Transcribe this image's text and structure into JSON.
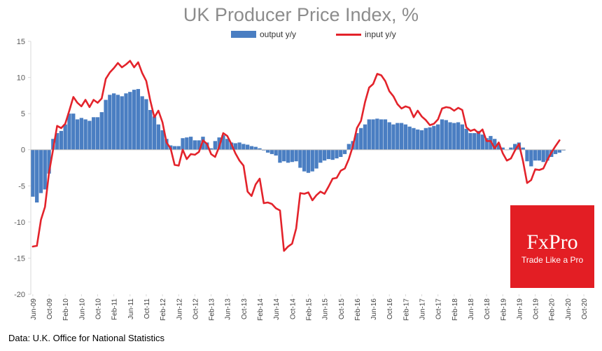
{
  "chart_data": {
    "type": "bar+line",
    "title": "UK Producer Price Index, %",
    "ylim": [
      -20,
      15
    ],
    "yticks": [
      15,
      10,
      5,
      0,
      -5,
      -10,
      -15,
      -20
    ],
    "xtick_labels": [
      "Jun-09",
      "Oct-09",
      "Feb-10",
      "Jun-10",
      "Oct-10",
      "Feb-11",
      "Jun-11",
      "Oct-11",
      "Feb-12",
      "Jun-12",
      "Oct-12",
      "Feb-13",
      "Jun-13",
      "Oct-13",
      "Feb-14",
      "Jun-14",
      "Oct-14",
      "Feb-15",
      "Jun-15",
      "Oct-15",
      "Feb-16",
      "Jun-16",
      "Oct-16",
      "Feb-17",
      "Jun-17",
      "Oct-17",
      "Feb-18",
      "Jun-18",
      "Oct-18",
      "Feb-19",
      "Jun-19",
      "Oct-19",
      "Feb-20",
      "Jun-20",
      "Oct-20"
    ],
    "x_start": "Jun-09",
    "series": [
      {
        "name": "output y/y",
        "kind": "bar",
        "color": "#4a7ec2",
        "values": [
          -6.5,
          -7.3,
          -6.0,
          -5.5,
          -3.3,
          1.5,
          2.3,
          2.6,
          3.5,
          5.0,
          5.0,
          4.2,
          4.4,
          4.2,
          4.0,
          4.5,
          4.5,
          5.2,
          6.9,
          7.6,
          7.8,
          7.6,
          7.4,
          7.8,
          8.0,
          8.3,
          8.4,
          7.4,
          7.0,
          5.5,
          4.6,
          3.5,
          2.7,
          1.5,
          0.6,
          0.5,
          0.5,
          1.6,
          1.7,
          1.8,
          1.3,
          1.3,
          1.8,
          1.0,
          0.2,
          1.2,
          1.7,
          2.0,
          1.5,
          1.0,
          0.9,
          1.0,
          0.8,
          0.7,
          0.5,
          0.4,
          0.2,
          -0.1,
          -0.4,
          -0.6,
          -0.8,
          -1.8,
          -1.6,
          -1.8,
          -1.7,
          -1.6,
          -2.5,
          -3.0,
          -3.2,
          -3.0,
          -2.6,
          -1.8,
          -1.5,
          -1.3,
          -1.4,
          -1.2,
          -1.0,
          -0.6,
          0.8,
          1.2,
          2.3,
          3.0,
          3.5,
          4.2,
          4.2,
          4.3,
          4.2,
          4.2,
          3.8,
          3.5,
          3.7,
          3.7,
          3.5,
          3.2,
          3.0,
          2.8,
          2.7,
          3.0,
          3.1,
          3.3,
          3.5,
          4.2,
          4.1,
          3.8,
          3.7,
          3.8,
          3.5,
          2.9,
          2.3,
          2.3,
          2.6,
          2.1,
          1.6,
          1.9,
          1.5,
          0.8,
          0.3,
          0.0,
          0.3,
          0.8,
          1.0,
          0.3,
          -1.6,
          -2.3,
          -1.5,
          -1.5,
          -1.7,
          -1.5,
          -1.0,
          -0.6,
          -0.4,
          -0.1
        ]
      },
      {
        "name": "input y/y",
        "kind": "line",
        "color": "#e3232b",
        "values": [
          -13.4,
          -13.3,
          -9.7,
          -7.9,
          -3.2,
          0.0,
          3.3,
          3.0,
          3.6,
          5.4,
          7.3,
          6.5,
          6.0,
          6.9,
          5.9,
          6.9,
          6.5,
          7.1,
          9.8,
          10.7,
          11.3,
          12.0,
          11.4,
          11.8,
          12.3,
          11.4,
          12.1,
          10.6,
          9.5,
          6.8,
          4.5,
          5.4,
          3.8,
          1.0,
          0.2,
          -2.1,
          -2.2,
          0.0,
          -1.3,
          -0.6,
          -0.7,
          -0.3,
          1.3,
          0.8,
          -0.6,
          -1.0,
          0.4,
          2.3,
          1.9,
          0.8,
          -0.5,
          -1.5,
          -2.2,
          -5.8,
          -6.4,
          -4.8,
          -4.0,
          -7.4,
          -7.3,
          -7.5,
          -8.1,
          -8.4,
          -14.0,
          -13.4,
          -13.0,
          -10.9,
          -6.0,
          -6.1,
          -5.9,
          -7.0,
          -6.3,
          -5.8,
          -6.1,
          -5.1,
          -4.0,
          -3.9,
          -2.9,
          -2.6,
          -1.3,
          0.5,
          3.0,
          4.0,
          6.6,
          8.6,
          9.1,
          10.5,
          10.3,
          9.5,
          8.1,
          7.4,
          6.3,
          5.7,
          6.0,
          5.8,
          4.5,
          5.4,
          4.6,
          4.1,
          3.4,
          3.6,
          4.2,
          5.7,
          5.9,
          5.8,
          5.4,
          5.8,
          5.5,
          3.1,
          2.6,
          2.8,
          2.3,
          2.8,
          1.2,
          1.2,
          0.2,
          1.0,
          -0.5,
          -1.5,
          -1.2,
          -0.1,
          0.8,
          -1.6,
          -4.6,
          -4.2,
          -2.7,
          -2.8,
          -2.6,
          -1.4,
          -0.4,
          0.5,
          1.3
        ]
      }
    ]
  },
  "legend": {
    "output_label": "output y/y",
    "input_label": "input y/y"
  },
  "source_text": "Data: U.K. Office for National Statistics",
  "logo": {
    "name": "FxPro",
    "tagline": "Trade Like a Pro"
  },
  "colors": {
    "bar": "#4a7ec2",
    "line": "#e3232b",
    "logo_bg": "#e31e24",
    "axis": "#d9d9d9"
  }
}
